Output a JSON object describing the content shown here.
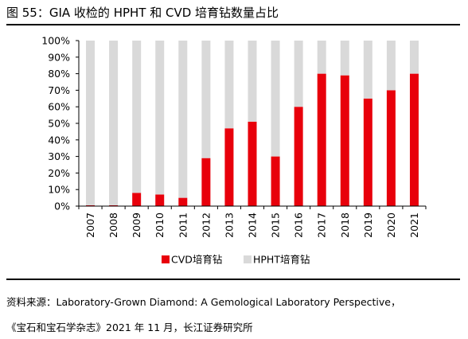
{
  "figure_title": "图 55：GIA 收检的 HPHT 和 CVD 培育钻数量占比",
  "source_line1": "资料来源：Laboratory-Grown Diamond: A Gemological Laboratory Perspective，",
  "source_line2": "《宝石和宝石学杂志》2021 年 11 月，长江证券研究所",
  "colors": {
    "cvd": "#e8000b",
    "hpht": "#d9d9d9",
    "axis": "#000000"
  },
  "chart_data": {
    "type": "bar",
    "stacked": true,
    "categories": [
      "2007",
      "2008",
      "2009",
      "2010",
      "2011",
      "2012",
      "2013",
      "2014",
      "2015",
      "2016",
      "2017",
      "2018",
      "2019",
      "2020",
      "2021"
    ],
    "series": [
      {
        "name": "CVD培育钻",
        "values": [
          0.5,
          0.5,
          8,
          7,
          5,
          29,
          47,
          51,
          30,
          60,
          80,
          79,
          65,
          70,
          80
        ]
      },
      {
        "name": "HPHT培育钻",
        "values": [
          99.5,
          99.5,
          92,
          93,
          95,
          71,
          53,
          49,
          70,
          40,
          20,
          21,
          35,
          30,
          20
        ]
      }
    ],
    "ylim": [
      0,
      100
    ],
    "yticks": [
      "0%",
      "10%",
      "20%",
      "30%",
      "40%",
      "50%",
      "60%",
      "70%",
      "80%",
      "90%",
      "100%"
    ],
    "legend_position": "bottom",
    "grid": false
  }
}
